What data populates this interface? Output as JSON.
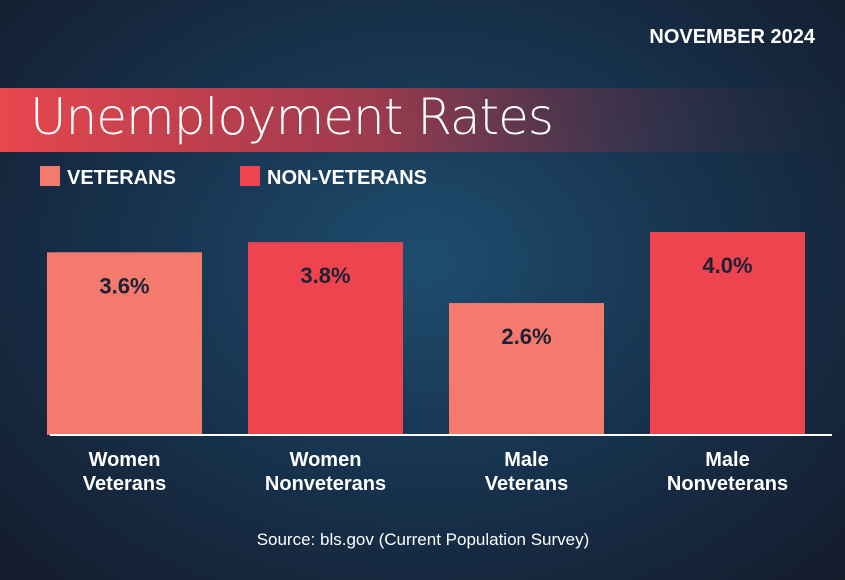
{
  "chart_data": {
    "type": "bar",
    "date": "NOVEMBER 2024",
    "title": "Unemployment Rates",
    "source": "Source: bls.gov (Current Population Survey)",
    "categories": [
      "Women\nVeterans",
      "Women\nNonveterans",
      "Male\nVeterans",
      "Male\nNonveterans"
    ],
    "series": [
      {
        "name": "VETERANS",
        "color": "#f47a6e",
        "values": [
          3.6,
          null,
          2.6,
          null
        ],
        "value_labels": [
          "3.6%",
          null,
          "2.6%",
          null
        ]
      },
      {
        "name": "NON-VETERANS",
        "color": "#ef434f",
        "values": [
          null,
          3.8,
          null,
          4.0
        ],
        "value_labels": [
          null,
          "3.8%",
          null,
          "4.0%"
        ]
      }
    ],
    "ylim": [
      0,
      4
    ]
  }
}
